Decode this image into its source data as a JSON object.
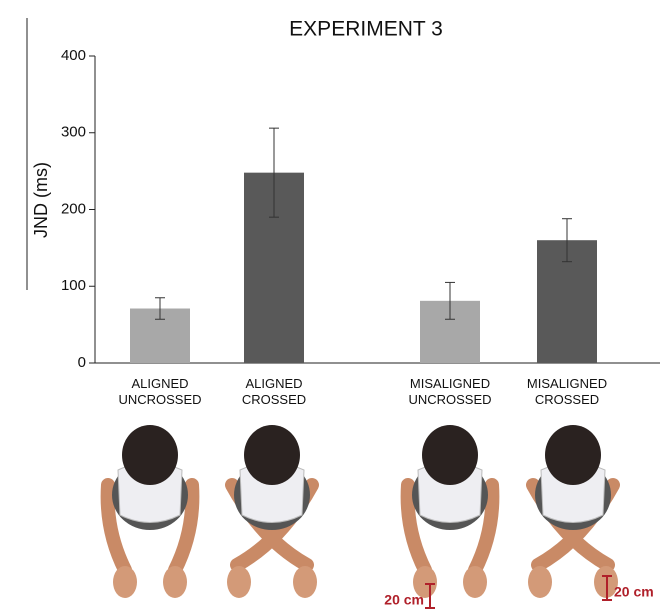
{
  "chart_data": {
    "type": "bar",
    "title": "EXPERIMENT 3",
    "y_label": "JND (ms)",
    "categories": [
      "ALIGNED UNCROSSED",
      "ALIGNED CROSSED",
      "MISALIGNED UNCROSSED",
      "MISALIGNED CROSSED"
    ],
    "values": [
      71,
      248,
      81,
      160
    ],
    "errors": [
      14,
      58,
      24,
      28
    ],
    "colors": [
      "#a8a8a8",
      "#595959",
      "#a8a8a8",
      "#595959"
    ],
    "ylim": [
      0,
      400
    ],
    "yticks": [
      0,
      100,
      200,
      300,
      400
    ],
    "annotations": [
      "20 cm",
      "20 cm"
    ]
  }
}
